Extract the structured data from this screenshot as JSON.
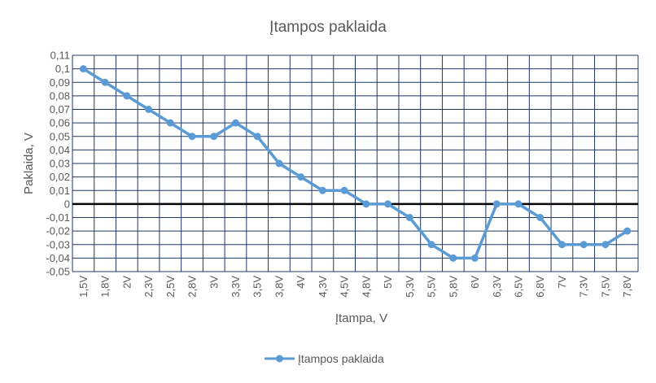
{
  "chart_data": {
    "type": "line",
    "title": "Įtampos paklaida",
    "xlabel": "Įtampa, V",
    "ylabel": "Paklaida, V",
    "categories": [
      "1,5V",
      "1,8V",
      "2V",
      "2,3V",
      "2,5V",
      "2,8V",
      "3V",
      "3,3V",
      "3,5V",
      "3,8V",
      "4V",
      "4,3V",
      "4,5V",
      "4,8V",
      "5V",
      "5,3V",
      "5,5V",
      "5,8V",
      "6V",
      "6,3V",
      "6,5V",
      "6,8V",
      "7V",
      "7,3V",
      "7,5V",
      "7,8V"
    ],
    "series": [
      {
        "name": "Įtampos paklaida",
        "color": "#5b9bd5",
        "values": [
          0.1,
          0.09,
          0.08,
          0.07,
          0.06,
          0.05,
          0.05,
          0.06,
          0.05,
          0.03,
          0.02,
          0.01,
          0.01,
          0,
          0,
          -0.01,
          -0.03,
          -0.04,
          -0.04,
          0,
          0,
          -0.01,
          -0.03,
          -0.03,
          -0.03,
          -0.02
        ]
      }
    ],
    "ylim": [
      -0.05,
      0.11
    ],
    "ytick_step": 0.01,
    "yticks": [
      "-0,05",
      "-0,04",
      "-0,03",
      "-0,02",
      "-0,01",
      "0",
      "0,01",
      "0,02",
      "0,03",
      "0,04",
      "0,05",
      "0,06",
      "0,07",
      "0,08",
      "0,09",
      "0,1",
      "0,11"
    ],
    "grid": true,
    "grid_color": "#1f3864",
    "legend_position": "bottom"
  }
}
